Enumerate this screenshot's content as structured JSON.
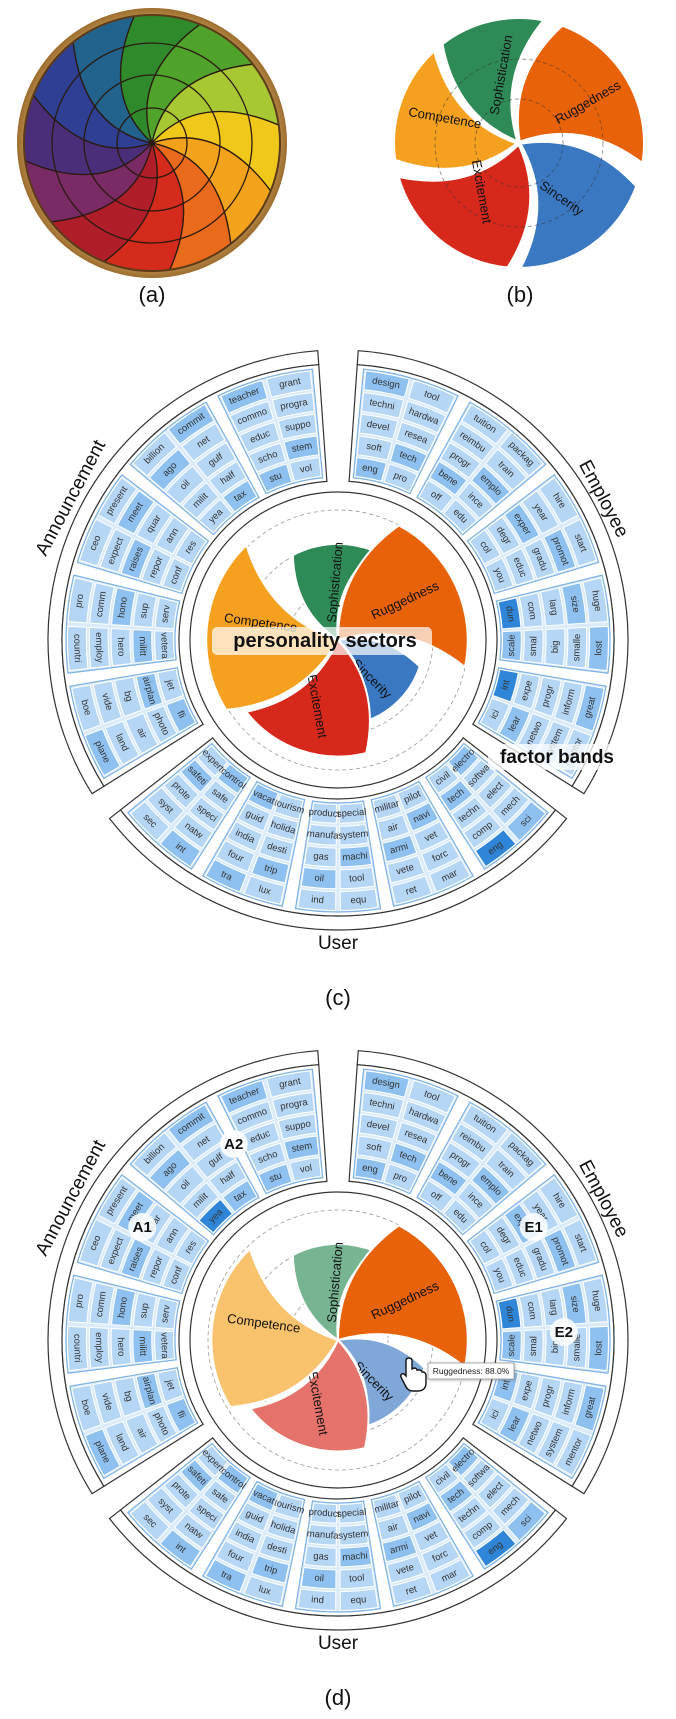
{
  "captions": {
    "a": "(a)",
    "b": "(b)",
    "c": "(c)",
    "d": "(d)"
  },
  "sectors": [
    {
      "name": "Sophistication",
      "color": "#2e8b57",
      "c_value": 0.55,
      "d_value": 0.55
    },
    {
      "name": "Ruggedness",
      "color": "#e8620a",
      "c_value": 0.88,
      "d_value": 0.88
    },
    {
      "name": "Sincerity",
      "color": "#3a78c2",
      "c_value": 0.45,
      "d_value": 0.5
    },
    {
      "name": "Excitement",
      "color": "#d7281c",
      "c_value": 0.75,
      "d_value": 0.7
    },
    {
      "name": "Competence",
      "color": "#f5a11f",
      "c_value": 0.9,
      "d_value": 0.85
    }
  ],
  "groups": [
    {
      "label": "Employee",
      "bands": [
        [
          "design",
          "tool",
          "techni",
          "hardwa",
          "devel",
          "resea",
          "soft",
          "tech",
          "eng",
          "pro"
        ],
        [
          "tuition",
          "packag",
          "reimbu",
          "train",
          "progr",
          "emplo",
          "bene",
          "ince",
          "off",
          "edu"
        ],
        [
          "hire",
          "start",
          "year",
          "promot",
          "exper",
          "gradu",
          "degr",
          "educ",
          "col",
          "you"
        ],
        [
          "huge",
          "lost",
          "size",
          "smalle",
          "larg",
          "big",
          "com",
          "smal",
          "dun",
          "scale"
        ],
        [
          "great",
          "mentor",
          "inform",
          "system",
          "progr",
          "netwo",
          "expe",
          "lear",
          "int",
          "ici"
        ]
      ]
    },
    {
      "label": "User",
      "bands": [
        [
          "sci",
          "eng",
          "mech",
          "comp",
          "elect",
          "techn",
          "softwa",
          "tech",
          "electro",
          "civil"
        ],
        [
          "mar",
          "ret",
          "forc",
          "vete",
          "vet",
          "armi",
          "navi",
          "air",
          "pilot",
          "militar"
        ],
        [
          "equ",
          "ind",
          "tool",
          "oil",
          "machi",
          "gas",
          "system",
          "manufa",
          "special",
          "product"
        ],
        [
          "lux",
          "tra",
          "trip",
          "four",
          "desti",
          "india",
          "holida",
          "guid",
          "tourism",
          "vacat"
        ],
        [
          "int",
          "sec",
          "natw",
          "syst",
          "speci",
          "prote",
          "safe",
          "safeti",
          "control",
          "expert"
        ]
      ]
    },
    {
      "label": "Announcement",
      "bands": [
        [
          "plane",
          "boe",
          "land",
          "vide",
          "air",
          "bg",
          "photo",
          "airplan",
          "fli",
          "jet"
        ],
        [
          "countri",
          "pro",
          "employ",
          "comm",
          "hero",
          "hono",
          "militt",
          "sup",
          "vetera",
          "serv"
        ],
        [
          "ceo",
          "present",
          "expect",
          "meet",
          "raises",
          "quar",
          "repor",
          "ann",
          "conf",
          "res"
        ],
        [
          "billion",
          "commit",
          "ago",
          "net",
          "oil",
          "gulf",
          "milit",
          "half",
          "yea",
          "tax"
        ],
        [
          "teacher",
          "grant",
          "commo",
          "progra",
          "educ",
          "suppo",
          "scho",
          "stem",
          "stu",
          "vol"
        ]
      ]
    }
  ],
  "panel_c_annotations": {
    "sectors_label": "personality sectors",
    "bands_label": "factor bands"
  },
  "panel_d_annotations": {
    "markers": [
      "A1",
      "A2",
      "E1",
      "E2"
    ],
    "tooltip": "Ruggedness: 88.0%"
  }
}
